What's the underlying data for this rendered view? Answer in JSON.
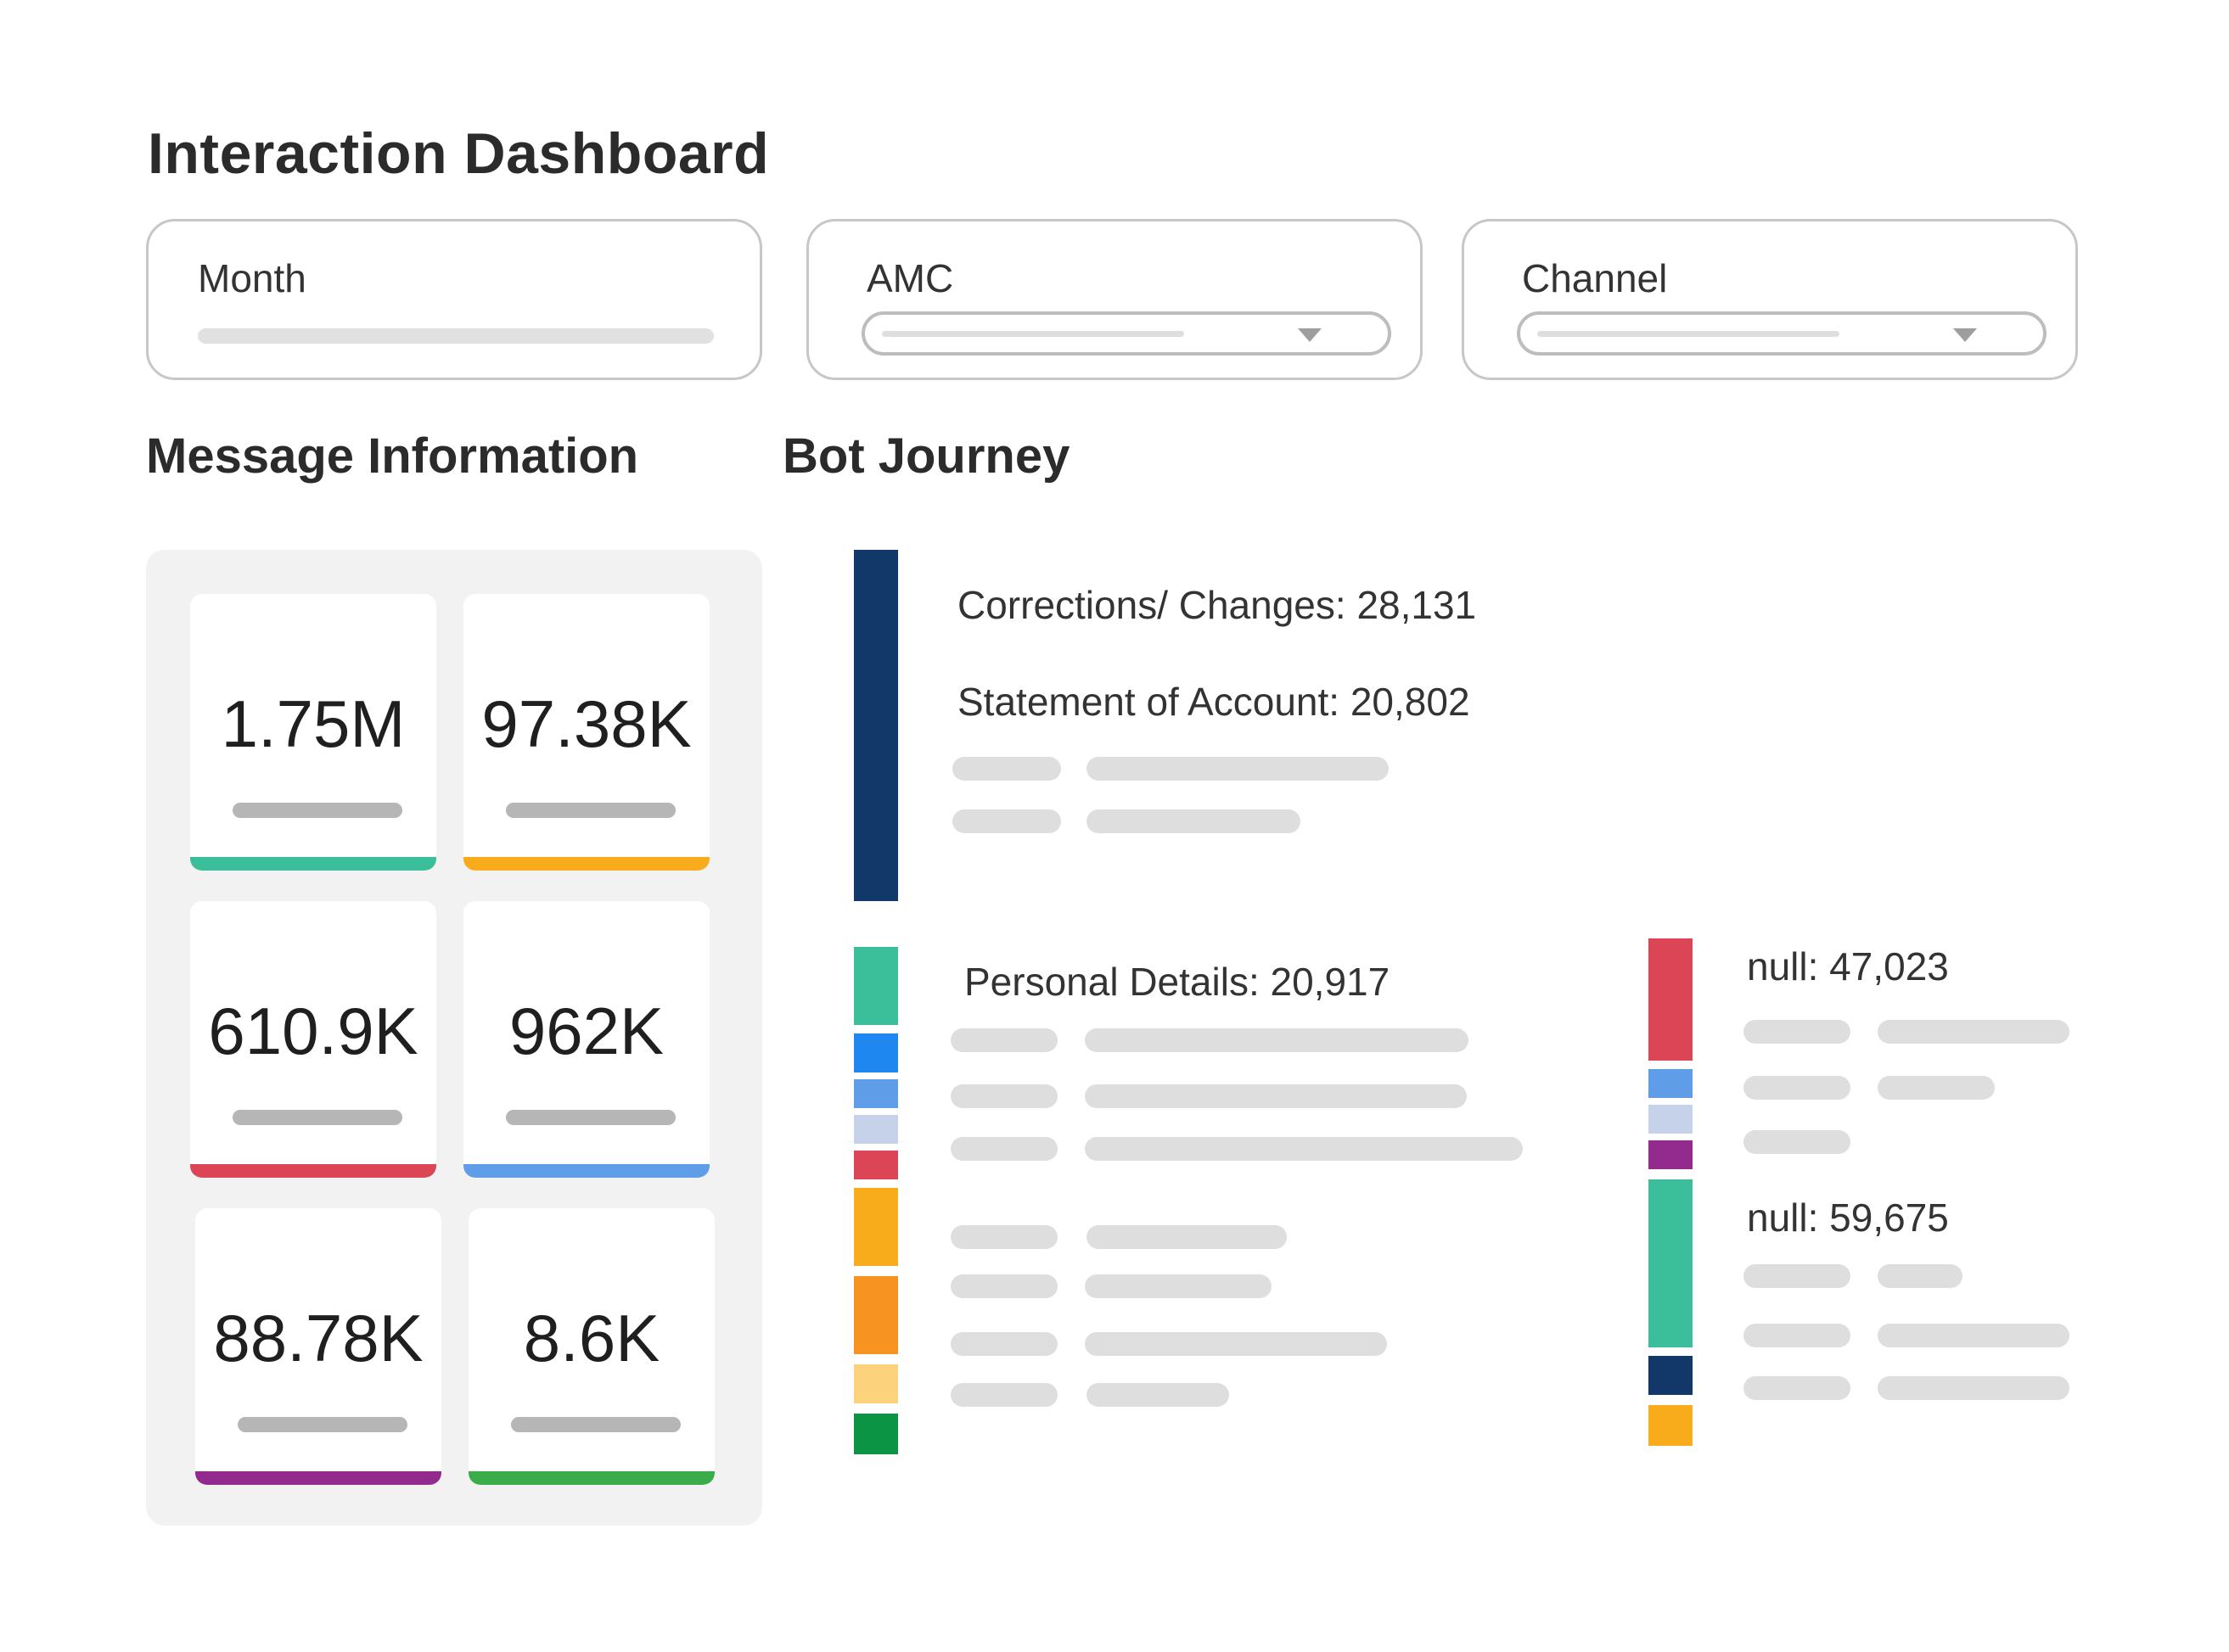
{
  "page": {
    "title": "Interaction Dashboard"
  },
  "filters": [
    {
      "label": "Month",
      "kind": "slider"
    },
    {
      "label": "AMC",
      "kind": "select"
    },
    {
      "label": "Channel",
      "kind": "select"
    }
  ],
  "sections": {
    "message_info": "Message Information",
    "bot_journey": "Bot Journey"
  },
  "kpis": [
    {
      "value": "1.75M",
      "accent": "#3bbf9b"
    },
    {
      "value": "97.38K",
      "accent": "#f9ac1b"
    },
    {
      "value": "610.9K",
      "accent": "#dc4556"
    },
    {
      "value": "962K",
      "accent": "#5f9de8"
    },
    {
      "value": "88.78K",
      "accent": "#932b8e"
    },
    {
      "value": "8.6K",
      "accent": "#3aad4a"
    }
  ],
  "bot_journey": {
    "group1": {
      "labels": [
        "Corrections/ Changes: 28,131",
        "Statement of Account: 20,802"
      ],
      "segment_colors": [
        "#12386a"
      ]
    },
    "group2": {
      "labels": [
        "Personal Details: 20,917"
      ],
      "segment_colors": [
        "#3bbf9b",
        "#1e88f0",
        "#5f9de8",
        "#c5d2ea",
        "#dc4556",
        "#f9ac1b",
        "#f79320",
        "#fdd27c",
        "#0c9445"
      ]
    },
    "group3": {
      "labels": [
        "null: 47,023",
        "null: 59,675"
      ],
      "segment_colors": [
        "#dc4556",
        "#5f9de8",
        "#c5d2ea",
        "#932b8e",
        "#3bbf9b",
        "#12386a",
        "#f9ac1b"
      ]
    }
  }
}
